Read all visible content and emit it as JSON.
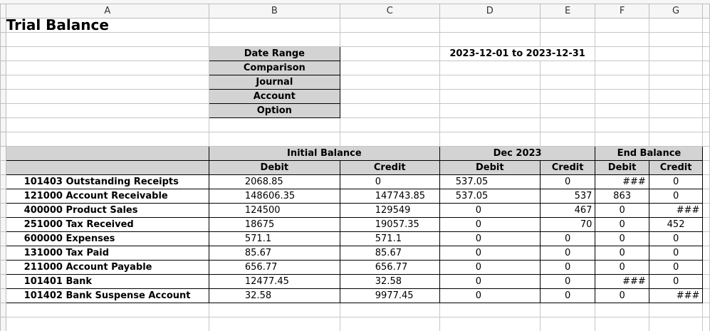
{
  "columns": [
    "A",
    "B",
    "C",
    "D",
    "E",
    "F",
    "G"
  ],
  "title": "Trial Balance",
  "filters": [
    {
      "label": "Date Range",
      "value": "2023-12-01 to 2023-12-31"
    },
    {
      "label": "Comparison",
      "value": ""
    },
    {
      "label": "Journal",
      "value": ""
    },
    {
      "label": "Account",
      "value": ""
    },
    {
      "label": "Option",
      "value": ""
    }
  ],
  "table": {
    "groups": [
      "Initial Balance",
      "Dec  2023",
      "End Balance"
    ],
    "subheaders": [
      "Debit",
      "Credit",
      "Debit",
      "Credit",
      "Debit",
      "Credit"
    ],
    "rows": [
      {
        "account": "101403 Outstanding Receipts",
        "cells": [
          "2068.85",
          "0",
          "537.05",
          "0",
          "###",
          "0"
        ]
      },
      {
        "account": "121000 Account Receivable",
        "cells": [
          "148606.35",
          "147743.85",
          "537.05",
          "537",
          "863",
          "0"
        ]
      },
      {
        "account": "400000 Product Sales",
        "cells": [
          "124500",
          "129549",
          "0",
          "467",
          "0",
          "###"
        ]
      },
      {
        "account": "251000 Tax Received",
        "cells": [
          "18675",
          "19057.35",
          "0",
          "70",
          "0",
          "452"
        ]
      },
      {
        "account": "600000 Expenses",
        "cells": [
          "571.1",
          "571.1",
          "0",
          "0",
          "0",
          "0"
        ]
      },
      {
        "account": "131000 Tax Paid",
        "cells": [
          "85.67",
          "85.67",
          "0",
          "0",
          "0",
          "0"
        ]
      },
      {
        "account": "211000 Account Payable",
        "cells": [
          "656.77",
          "656.77",
          "0",
          "0",
          "0",
          "0"
        ]
      },
      {
        "account": "101401 Bank",
        "cells": [
          "12477.45",
          "32.58",
          "0",
          "0",
          "###",
          "0"
        ]
      },
      {
        "account": "101402 Bank Suspense Account",
        "cells": [
          "32.58",
          "9977.45",
          "0",
          "0",
          "0",
          "###"
        ]
      }
    ]
  }
}
